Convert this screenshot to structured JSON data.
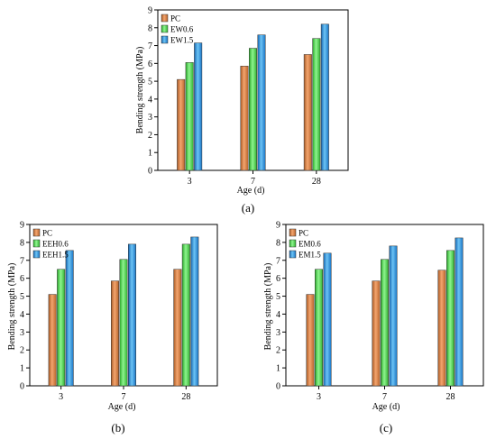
{
  "colors": {
    "PC": "#e8884a",
    "EW": "#5ee05e",
    "EW_hi": "#2a9be8"
  },
  "chart_data": [
    {
      "type": "bar",
      "caption": "(a)",
      "xlabel": "Age (d)",
      "ylabel": "Bending strength (MPa)",
      "ylim": [
        0,
        9
      ],
      "yticks": [
        "0",
        "1",
        "2",
        "3",
        "4",
        "5",
        "6",
        "7",
        "8",
        "9"
      ],
      "categories": [
        "3",
        "7",
        "28"
      ],
      "legend_position": "top-left",
      "series": [
        {
          "name": "PC",
          "values": [
            5.1,
            5.85,
            6.5
          ]
        },
        {
          "name": "EW0.6",
          "values": [
            6.05,
            6.85,
            7.4
          ]
        },
        {
          "name": "EW1.5",
          "values": [
            7.15,
            7.6,
            8.2
          ]
        }
      ]
    },
    {
      "type": "bar",
      "caption": "(b)",
      "xlabel": "Age (d)",
      "ylabel": "Bending strength (MPa)",
      "ylim": [
        0,
        9
      ],
      "yticks": [
        "0",
        "1",
        "2",
        "3",
        "4",
        "5",
        "6",
        "7",
        "8",
        "9"
      ],
      "categories": [
        "3",
        "7",
        "28"
      ],
      "legend_position": "top-left",
      "series": [
        {
          "name": "PC",
          "values": [
            5.1,
            5.85,
            6.5
          ]
        },
        {
          "name": "EEH0.6",
          "values": [
            6.5,
            7.05,
            7.9
          ]
        },
        {
          "name": "EEH1.5",
          "values": [
            7.55,
            7.9,
            8.3
          ]
        }
      ]
    },
    {
      "type": "bar",
      "caption": "(c)",
      "xlabel": "Age (d)",
      "ylabel": "Bending strength (MPa)",
      "ylim": [
        0,
        9
      ],
      "yticks": [
        "0",
        "1",
        "2",
        "3",
        "4",
        "5",
        "6",
        "7",
        "8",
        "9"
      ],
      "categories": [
        "3",
        "7",
        "28"
      ],
      "legend_position": "top-left",
      "series": [
        {
          "name": "PC",
          "values": [
            5.1,
            5.85,
            6.45
          ]
        },
        {
          "name": "EM0.6",
          "values": [
            6.5,
            7.05,
            7.55
          ]
        },
        {
          "name": "EM1.5",
          "values": [
            7.4,
            7.8,
            8.25
          ]
        }
      ]
    }
  ]
}
